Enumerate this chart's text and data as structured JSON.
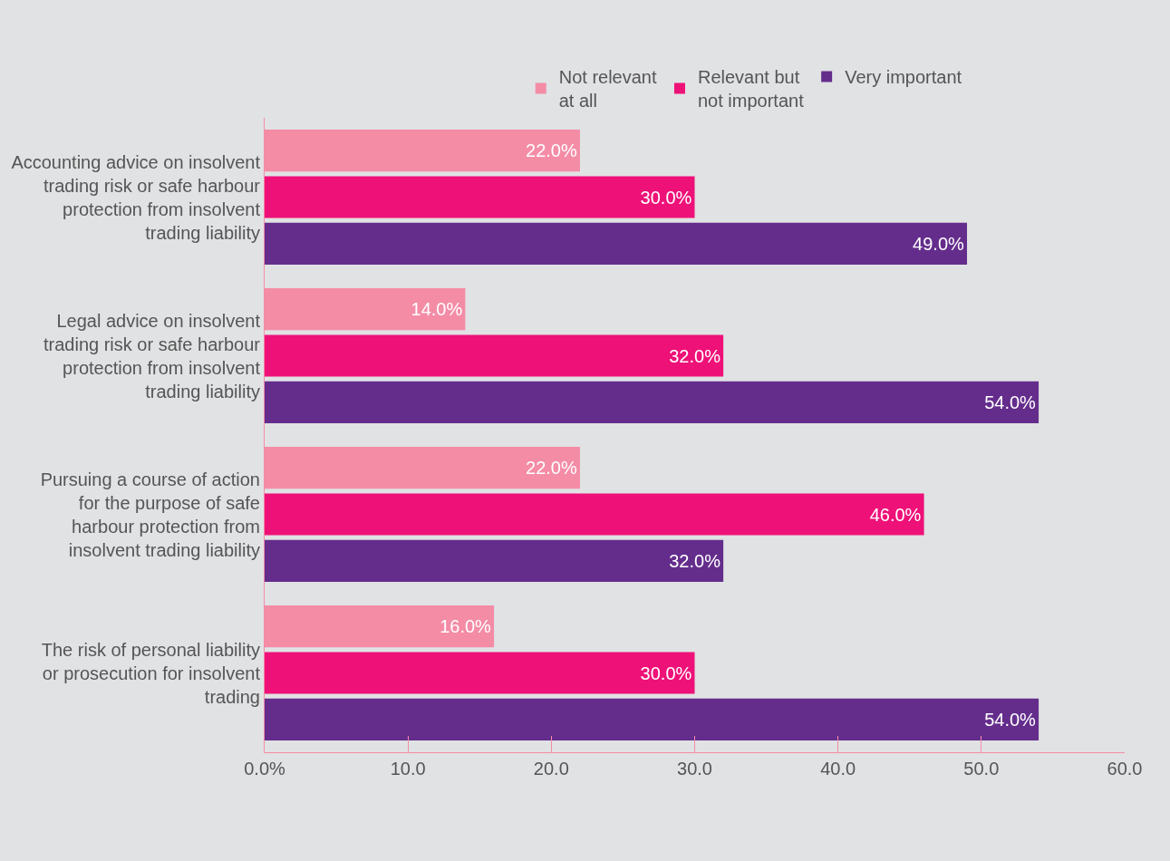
{
  "chart_data": {
    "type": "bar",
    "orientation": "horizontal",
    "categories": [
      "Accounting advice on insolvent trading risk or safe harbour protection from insolvent trading liability",
      "Legal advice on insolvent trading risk or safe harbour protection from insolvent trading liability",
      "Pursuing a course of action for the purpose of safe harbour protection from insolvent trading liability",
      "The risk of personal liability or prosecution for insolvent trading"
    ],
    "series": [
      {
        "name": "Not relevant at all",
        "color": "#f48ca6",
        "values": [
          22.0,
          14.0,
          22.0,
          16.0
        ],
        "value_labels": [
          "22.0%",
          "14.0%",
          "22.0%",
          "16.0%"
        ]
      },
      {
        "name": "Relevant but not important",
        "color": "#ee1178",
        "values": [
          30.0,
          32.0,
          46.0,
          30.0
        ],
        "value_labels": [
          "30.0%",
          "32.0%",
          "46.0%",
          "30.0%"
        ]
      },
      {
        "name": "Very important",
        "color": "#642d8c",
        "values": [
          49.0,
          54.0,
          32.0,
          54.0
        ],
        "value_labels": [
          "49.0%",
          "54.0%",
          "32.0%",
          "54.0%"
        ]
      }
    ],
    "xlim": [
      0,
      60
    ],
    "xticks": [
      {
        "value": 0,
        "label": "0.0%"
      },
      {
        "value": 10,
        "label": "10.0"
      },
      {
        "value": 20,
        "label": "20.0"
      },
      {
        "value": 30,
        "label": "30.0"
      },
      {
        "value": 40,
        "label": "40.0"
      },
      {
        "value": 50,
        "label": "50.0"
      },
      {
        "value": 60,
        "label": "60.0"
      }
    ],
    "grid": false,
    "legend": "top"
  }
}
